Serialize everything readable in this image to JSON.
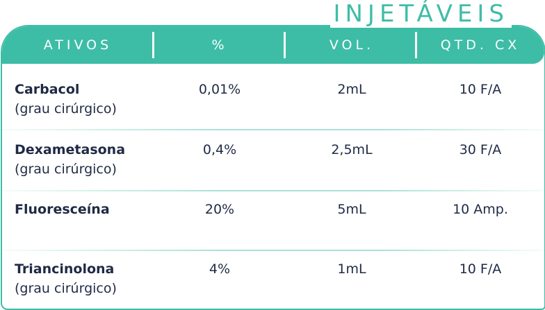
{
  "section_title": "INJETÁVEIS",
  "colors": {
    "accent": "#3dbda6",
    "text": "#1f2a44",
    "header_text": "#ffffff"
  },
  "table": {
    "headers": [
      "ATIVOS",
      "%",
      "VOL.",
      "QTD. CX"
    ],
    "rows": [
      {
        "name": "Carbacol",
        "note": "(grau cirúrgico)",
        "pct": "0,01%",
        "vol": "2mL",
        "qtd": "10 F/A"
      },
      {
        "name": "Dexametasona",
        "note": "(grau cirúrgico)",
        "pct": "0,4%",
        "vol": "2,5mL",
        "qtd": "30 F/A"
      },
      {
        "name": "Fluoresceína",
        "note": "",
        "pct": "20%",
        "vol": "5mL",
        "qtd": "10 Amp."
      },
      {
        "name": "Triancinolona",
        "note": "(grau cirúrgico)",
        "pct": "4%",
        "vol": "1mL",
        "qtd": "10 F/A"
      }
    ]
  }
}
